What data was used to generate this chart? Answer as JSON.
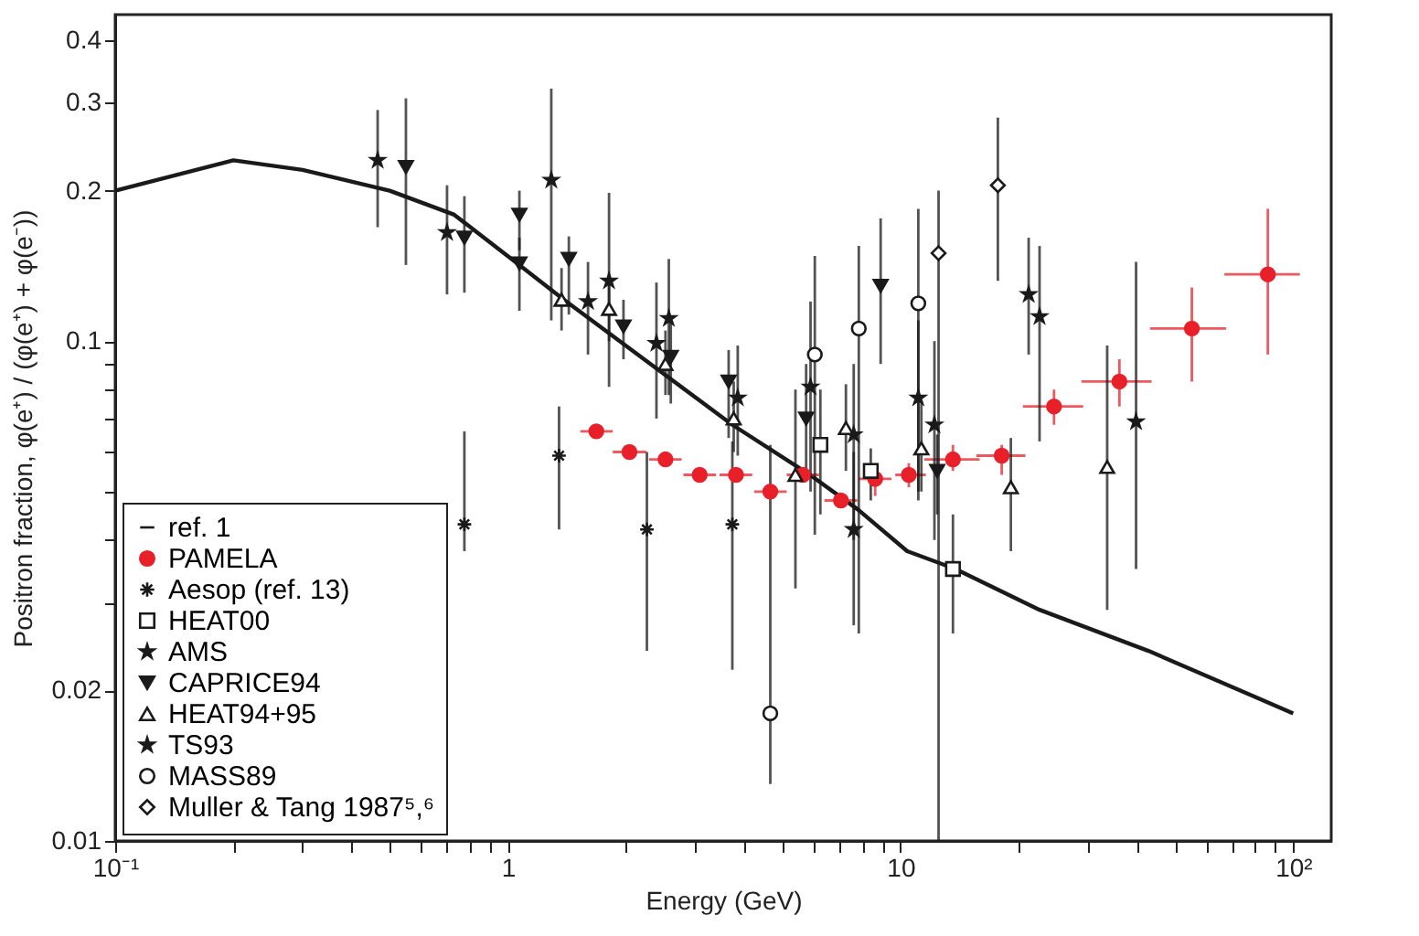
{
  "chart_data": {
    "type": "scatter",
    "xlabel": "Energy (GeV)",
    "ylabel": "Positron fraction, φ(e⁺) / (φ(e⁺) + φ(e⁻))",
    "log": "xy",
    "grid": false,
    "legend": "bottom left",
    "xlim": [
      0.1,
      125
    ],
    "ylim": [
      0.01,
      0.45
    ],
    "xticks": [
      {
        "value": 0.1,
        "label": "10⁻¹"
      },
      {
        "value": 0.2,
        "label": null
      },
      {
        "value": 0.3,
        "label": null
      },
      {
        "value": 0.4,
        "label": null
      },
      {
        "value": 0.5,
        "label": null
      },
      {
        "value": 0.6,
        "label": null
      },
      {
        "value": 0.7,
        "label": null
      },
      {
        "value": 0.8,
        "label": null
      },
      {
        "value": 0.9,
        "label": null
      },
      1,
      {
        "value": 2,
        "label": null
      },
      {
        "value": 3,
        "label": null
      },
      {
        "value": 4,
        "label": null
      },
      {
        "value": 5,
        "label": null
      },
      {
        "value": 6,
        "label": null
      },
      {
        "value": 7,
        "label": null
      },
      {
        "value": 8,
        "label": null
      },
      {
        "value": 9,
        "label": null
      },
      10,
      {
        "value": 20,
        "label": null
      },
      {
        "value": 30,
        "label": null
      },
      {
        "value": 40,
        "label": null
      },
      {
        "value": 50,
        "label": null
      },
      {
        "value": 60,
        "label": null
      },
      {
        "value": 70,
        "label": null
      },
      {
        "value": 80,
        "label": null
      },
      {
        "value": 90,
        "label": null
      },
      {
        "value": 100,
        "label": "10²"
      }
    ],
    "yticks": [
      0.01,
      0.02,
      {
        "value": 0.03,
        "label": null
      },
      {
        "value": 0.04,
        "label": null
      },
      {
        "value": 0.05,
        "label": null
      },
      {
        "value": 0.06,
        "label": null
      },
      {
        "value": 0.07,
        "label": null
      },
      {
        "value": 0.08,
        "label": null
      },
      {
        "value": 0.09,
        "label": null
      },
      0.1,
      0.2,
      0.3,
      0.4
    ],
    "series": [
      {
        "name": "ref. 1",
        "type": "line",
        "color": "#1a1a1a",
        "marker": "none",
        "line_style": "solid",
        "x": [
          0.1,
          0.2,
          0.3,
          0.5,
          0.73,
          1.07,
          1.39,
          3.73,
          5.88,
          7.8,
          10.4,
          13.8,
          22.6,
          42.8,
          100
        ],
        "values": [
          0.2,
          0.23,
          0.22,
          0.2,
          0.179,
          0.142,
          0.121,
          0.068,
          0.054,
          0.046,
          0.038,
          0.035,
          0.029,
          0.024,
          0.018
        ]
      },
      {
        "name": "PAMELA",
        "color": "#e8202a",
        "marker": "circle",
        "x": [
          1.68,
          2.04,
          2.52,
          3.08,
          3.81,
          4.66,
          5.64,
          7.05,
          8.62,
          10.5,
          13.6,
          18.1,
          24.6,
          36.1,
          55.2,
          86.2
        ],
        "values": [
          0.066,
          0.06,
          0.058,
          0.054,
          0.054,
          0.05,
          0.054,
          0.048,
          0.053,
          0.054,
          0.058,
          0.059,
          0.074,
          0.083,
          0.106,
          0.136
        ],
        "errors": [
          null,
          null,
          null,
          null,
          null,
          null,
          null,
          null,
          [
            0.049,
            0.057
          ],
          [
            0.051,
            0.057
          ],
          [
            0.055,
            0.062
          ],
          [
            0.054,
            0.062
          ],
          [
            0.068,
            0.08
          ],
          [
            0.074,
            0.092
          ],
          [
            0.083,
            0.128
          ],
          [
            0.094,
            0.184
          ]
        ],
        "xerrors": [
          [
            1.53,
            1.85
          ],
          [
            1.85,
            2.25
          ],
          [
            2.29,
            2.77
          ],
          [
            2.8,
            3.39
          ],
          [
            3.46,
            4.19
          ],
          [
            4.24,
            5.13
          ],
          [
            5.13,
            6.2
          ],
          [
            6.4,
            7.76
          ],
          [
            7.84,
            9.48
          ],
          [
            9.7,
            11.6
          ],
          [
            11.5,
            15.9
          ],
          [
            15.6,
            20.8
          ],
          [
            20.5,
            29.2
          ],
          [
            28.9,
            43.6
          ],
          [
            43.2,
            67.5
          ],
          [
            66.8,
            104
          ]
        ]
      },
      {
        "name": "Aesop (ref. 13)",
        "color": "#1a1a1a",
        "marker": "cross",
        "x": [
          0.775,
          1.35,
          2.26,
          3.73
        ],
        "values": [
          0.043,
          0.059,
          0.042,
          0.043
        ],
        "errors": [
          [
            0.038,
            0.066
          ],
          [
            0.042,
            0.074
          ],
          [
            0.024,
            0.06
          ],
          [
            0.022,
            0.063
          ]
        ]
      },
      {
        "name": "HEAT00",
        "color": "#1a1a1a",
        "marker": "square-open",
        "x": [
          6.25,
          8.4,
          13.6
        ],
        "values": [
          0.062,
          0.055,
          0.035
        ],
        "errors": [
          [
            0.045,
            0.08
          ],
          [
            0.048,
            0.061
          ],
          [
            0.026,
            0.045
          ]
        ]
      },
      {
        "name": "AMS",
        "color": "#1a1a1a",
        "marker": "star",
        "x": [
          0.466,
          0.7,
          1.29,
          1.81,
          2.39,
          2.57,
          3.85,
          5.9,
          7.6,
          11.1,
          12.2,
          21.2
        ],
        "values": [
          0.23,
          0.165,
          0.21,
          0.132,
          0.099,
          0.111,
          0.077,
          0.081,
          0.065,
          0.077,
          0.068,
          0.124
        ],
        "errors": [
          [
            0.169,
            0.29
          ],
          [
            0.124,
            0.205
          ],
          [
            0.11,
            0.32
          ],
          [
            0.081,
            0.198
          ],
          [
            0.07,
            0.131
          ],
          [
            0.078,
            0.146
          ],
          [
            0.059,
            0.098
          ],
          [
            0.05,
            0.12
          ],
          [
            0.04,
            0.09
          ],
          [
            0.05,
            0.11
          ],
          [
            0.04,
            0.1
          ],
          [
            0.094,
            0.161
          ]
        ]
      },
      {
        "name": "CAPRICE94",
        "color": "#1a1a1a",
        "marker": "triangle-down",
        "x": [
          0.55,
          0.775,
          1.07,
          1.07,
          1.43,
          1.97,
          2.6,
          3.65,
          5.75,
          8.9,
          12.4
        ],
        "values": [
          0.223,
          0.161,
          0.179,
          0.143,
          0.146,
          0.107,
          0.093,
          0.083,
          0.07,
          0.129,
          0.055
        ],
        "errors": [
          [
            0.142,
            0.306
          ],
          [
            0.125,
            0.195
          ],
          [
            0.152,
            0.2
          ],
          [
            0.115,
            0.161
          ],
          [
            0.113,
            0.162
          ],
          [
            0.092,
            0.121
          ],
          [
            0.075,
            0.11
          ],
          [
            0.064,
            0.096
          ],
          [
            0.055,
            0.09
          ],
          [
            0.09,
            0.176
          ],
          [
            0.045,
            0.065
          ]
        ]
      },
      {
        "name": "HEAT94+95",
        "color": "#1a1a1a",
        "marker": "triangle-open",
        "x": [
          1.37,
          1.81,
          2.52,
          3.76,
          5.4,
          7.26,
          11.3,
          19.1,
          33.6
        ],
        "values": [
          0.121,
          0.116,
          0.09,
          0.07,
          0.054,
          0.067,
          0.061,
          0.051,
          0.056
        ],
        "errors": [
          [
            0.105,
            0.14
          ],
          [
            0.1,
            0.135
          ],
          [
            0.078,
            0.105
          ],
          [
            0.06,
            0.083
          ],
          [
            0.032,
            0.08
          ],
          [
            0.055,
            0.082
          ],
          [
            0.05,
            0.075
          ],
          [
            0.038,
            0.064
          ],
          [
            0.029,
            0.098
          ]
        ]
      },
      {
        "name": "TS93",
        "color": "#1a1a1a",
        "marker": "star",
        "x": [
          1.6,
          7.6,
          22.6,
          39.8
        ],
        "values": [
          0.12,
          0.042,
          0.112,
          0.069
        ],
        "errors": [
          [
            0.094,
            0.144
          ],
          [
            0.027,
            0.06
          ],
          [
            0.063,
            0.155
          ],
          [
            0.035,
            0.144
          ]
        ]
      },
      {
        "name": "MASS89",
        "color": "#1a1a1a",
        "marker": "circle-open",
        "x": [
          4.66,
          6.05,
          7.83,
          11.1
        ],
        "values": [
          0.018,
          0.094,
          0.106,
          0.119
        ],
        "errors": [
          [
            0.013,
            0.062
          ],
          [
            0.041,
            0.148
          ],
          [
            0.026,
            0.155
          ],
          [
            0.048,
            0.184
          ]
        ]
      },
      {
        "name": "Muller & Tang 1987⁵,⁶",
        "color": "#1a1a1a",
        "marker": "diamond-open",
        "x": [
          12.5,
          17.7
        ],
        "values": [
          0.15,
          0.205
        ],
        "errors": [
          [
            0.01,
            0.2
          ],
          [
            0.132,
            0.28
          ]
        ]
      }
    ]
  }
}
